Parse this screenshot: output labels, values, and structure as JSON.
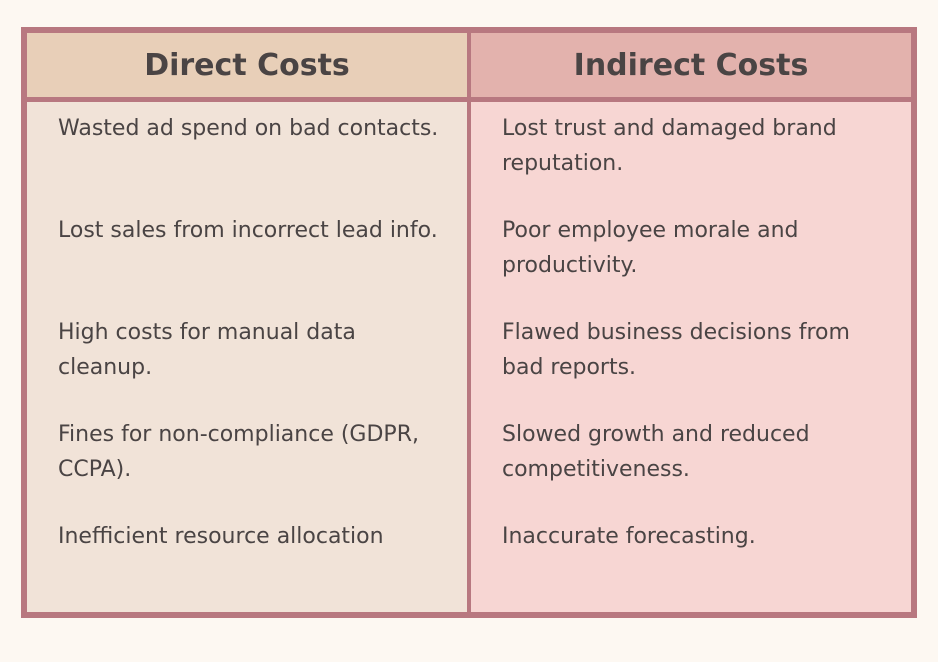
{
  "table": {
    "header": [
      "Direct Costs",
      "Indirect Costs"
    ],
    "columns": [
      [
        "Wasted ad spend on bad contacts.",
        "Lost sales from incorrect lead info.",
        "High costs for manual data cleanup.",
        "Fines for non-compliance (GDPR, CCPA).",
        "Inefficient resource allocation"
      ],
      [
        "Lost trust and damaged brand reputation.",
        "Poor employee morale and productivity.",
        "Flawed business decisions from bad reports.",
        "Slowed growth and reduced competitiveness.",
        "Inaccurate forecasting."
      ]
    ]
  }
}
